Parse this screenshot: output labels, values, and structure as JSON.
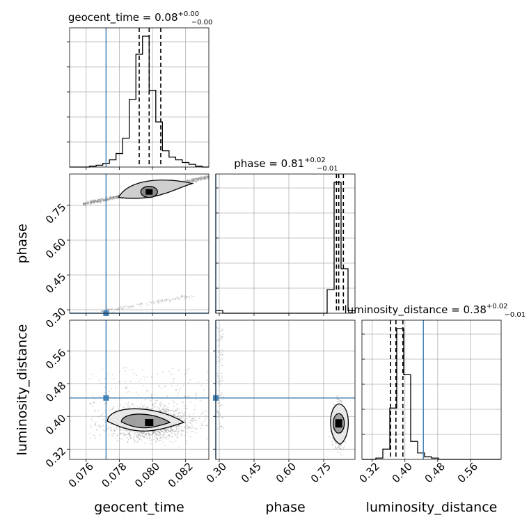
{
  "chart_data": {
    "type": "corner",
    "parameters": [
      {
        "name": "geocent_time",
        "truth": 0.0772,
        "median": 0.0798,
        "lo": 0.0792,
        "hi": 0.0805,
        "range": [
          0.075,
          0.0834
        ],
        "ticks": [
          0.076,
          0.078,
          0.08,
          0.082
        ],
        "tick_labels": [
          "0.076",
          "0.078",
          "0.080",
          "0.082"
        ],
        "title": {
          "main": "geocent_time = 0.08",
          "plus": "+0.00",
          "minus": "−0.00"
        }
      },
      {
        "name": "phase",
        "truth": 0.285,
        "median": 0.815,
        "lo": 0.805,
        "hi": 0.835,
        "range": [
          0.285,
          0.885
        ],
        "ticks": [
          0.3,
          0.45,
          0.6,
          0.75
        ],
        "tick_labels": [
          "0.30",
          "0.45",
          "0.60",
          "0.75"
        ],
        "title": {
          "main": "phase = 0.81",
          "plus": "+0.02",
          "minus": "−0.01"
        }
      },
      {
        "name": "luminosity_distance",
        "truth": 0.445,
        "median": 0.378,
        "lo": 0.365,
        "hi": 0.395,
        "range": [
          0.295,
          0.635
        ],
        "ticks": [
          0.32,
          0.4,
          0.48,
          0.56
        ],
        "tick_labels": [
          "0.32",
          "0.40",
          "0.48",
          "0.56"
        ],
        "title": {
          "main": "luminosity_distance = 0.38",
          "plus": "+0.02",
          "minus": "−0.01"
        }
      }
    ],
    "axis_labels": {
      "x": [
        "geocent_time",
        "phase",
        "luminosity_distance"
      ],
      "y": [
        "phase",
        "luminosity_distance"
      ]
    },
    "histograms": [
      {
        "edges": [
          0.075,
          0.0754,
          0.0758,
          0.0762,
          0.0766,
          0.077,
          0.0774,
          0.0778,
          0.0782,
          0.0786,
          0.079,
          0.0794,
          0.0798,
          0.0802,
          0.0806,
          0.081,
          0.0814,
          0.0818,
          0.0822,
          0.0826,
          0.083,
          0.0834
        ],
        "counts": [
          0,
          0,
          0,
          1,
          2,
          4,
          8,
          15,
          32,
          75,
          125,
          145,
          85,
          50,
          18,
          11,
          8,
          5,
          3,
          1,
          0
        ]
      },
      {
        "edges": [
          0.285,
          0.315,
          0.345,
          0.375,
          0.405,
          0.435,
          0.465,
          0.495,
          0.525,
          0.555,
          0.585,
          0.615,
          0.645,
          0.675,
          0.705,
          0.735,
          0.765,
          0.795,
          0.825,
          0.855,
          0.885
        ],
        "counts": [
          2,
          0,
          0,
          0,
          0,
          0,
          0,
          0,
          0,
          0,
          0,
          0,
          0,
          0,
          0,
          0,
          18,
          100,
          34,
          2
        ]
      },
      {
        "edges": [
          0.295,
          0.312,
          0.329,
          0.346,
          0.363,
          0.38,
          0.397,
          0.414,
          0.431,
          0.448,
          0.465,
          0.482,
          0.499,
          0.516,
          0.533,
          0.55,
          0.567,
          0.584,
          0.601,
          0.618,
          0.635
        ],
        "counts": [
          0,
          0,
          1,
          8,
          40,
          102,
          66,
          14,
          5,
          2,
          1,
          0,
          0,
          0,
          0,
          0,
          0,
          0,
          0,
          0
        ]
      }
    ],
    "colors": {
      "truth": "#4682b4",
      "hist": "#000000",
      "scatter": "#7f7f7f",
      "grid": "#b0b0b0"
    },
    "grid": true
  }
}
